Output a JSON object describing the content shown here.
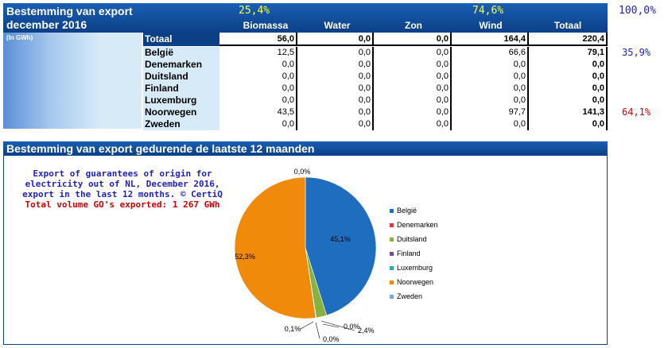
{
  "header": {
    "title_line1": "Bestemming van export",
    "title_line2": "december 2016",
    "unit": "(In GWh)",
    "pct_renewable_bio": "25,4%",
    "pct_renewable_wind": "74,6%",
    "pct_total": "100,0%"
  },
  "table": {
    "columns": [
      "Biomassa",
      "Water",
      "Zon",
      "Wind",
      "Totaal"
    ],
    "total_label": "Totaal",
    "total_row": [
      "56,0",
      "0,0",
      "0,0",
      "164,4",
      "220,4"
    ],
    "rows": [
      {
        "country": "België",
        "values": [
          "12,5",
          "0,0",
          "0,0",
          "66,6",
          "79,1"
        ],
        "share": "35,9%"
      },
      {
        "country": "Denemarken",
        "values": [
          "0,0",
          "0,0",
          "0,0",
          "0,0",
          "0,0"
        ],
        "share": ""
      },
      {
        "country": "Duitsland",
        "values": [
          "0,0",
          "0,0",
          "0,0",
          "0,0",
          "0,0"
        ],
        "share": ""
      },
      {
        "country": "Finland",
        "values": [
          "0,0",
          "0,0",
          "0,0",
          "0,0",
          "0,0"
        ],
        "share": ""
      },
      {
        "country": "Luxemburg",
        "values": [
          "0,0",
          "0,0",
          "0,0",
          "0,0",
          "0,0"
        ],
        "share": ""
      },
      {
        "country": "Noorwegen",
        "values": [
          "43,5",
          "0,0",
          "0,0",
          "97,7",
          "141,3"
        ],
        "share": "64,1%"
      },
      {
        "country": "Zweden",
        "values": [
          "0,0",
          "0,0",
          "0,0",
          "0,0",
          "0,0"
        ],
        "share": ""
      }
    ],
    "share_colors": {
      "België": "#1f1fbf",
      "Noorwegen": "#cc0000"
    }
  },
  "section": {
    "title": "Bestemming van export gedurende de laatste 12 maanden",
    "note_line1": "Export of guarantees of origin for",
    "note_line2": "electricity out of NL, December 2016,",
    "note_line3": "export in the last 12 months. © CertiQ",
    "note_line4": "Total volume GO's exported: 1 267 GWh"
  },
  "chart_data": {
    "type": "pie",
    "title": "",
    "categories": [
      "België",
      "Denemarken",
      "Duitsland",
      "Finland",
      "Luxemburg",
      "Noorwegen",
      "Zweden"
    ],
    "values": [
      45.1,
      0.0,
      2.4,
      0.0,
      0.1,
      52.3,
      0.0
    ],
    "labels": [
      "45,1%",
      "0,0%",
      "2,4%",
      "0,0%",
      "0,1%",
      "52,3%",
      "0,0%"
    ],
    "colors": [
      "#1f6dbf",
      "#d93a3a",
      "#86b33f",
      "#6a4fa0",
      "#2aa6c9",
      "#f08a0b",
      "#7aa6e0"
    ],
    "legend": "right"
  }
}
